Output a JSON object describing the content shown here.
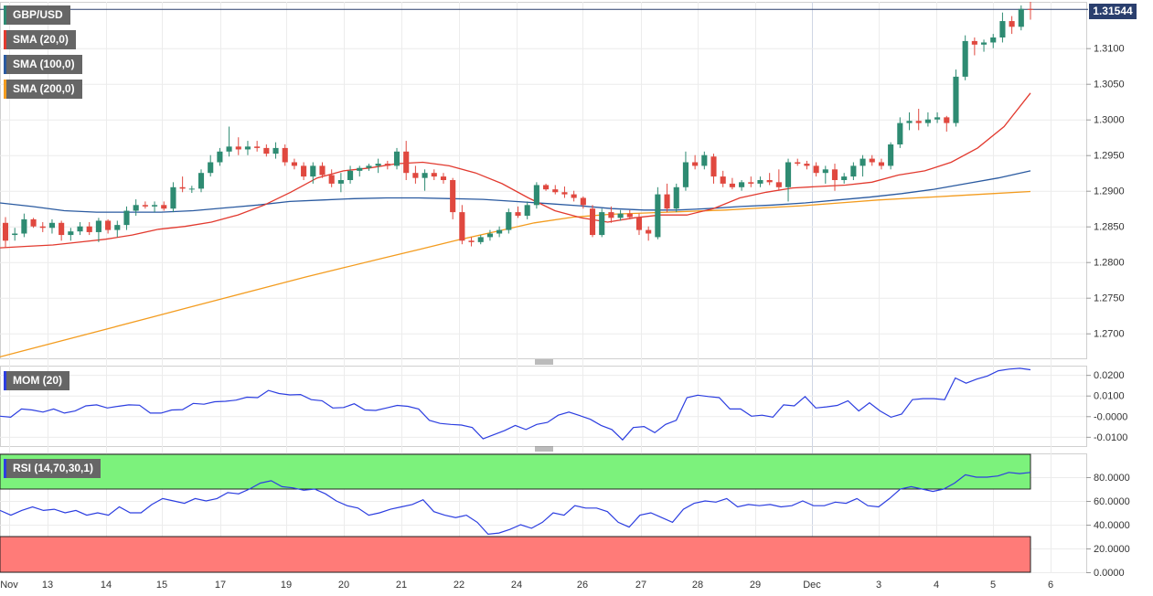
{
  "colors": {
    "bull": "#2e8b72",
    "bear": "#e0483f",
    "sma20": "#e23a2f",
    "sma100": "#2a5aa0",
    "sma200": "#f39c1f",
    "mom": "#2c3ee0",
    "rsi": "#2c3ee0",
    "overbought_zone": "#7cf27c",
    "oversold_zone": "#ff7b78",
    "price_line": "#2a3f6e",
    "legend_bg": "#666666"
  },
  "legends": {
    "price": "GBP/USD",
    "sma20": "SMA (20,0)",
    "sma100": "SMA (100,0)",
    "sma200": "SMA (200,0)",
    "mom": "MOM (20)",
    "rsi": "RSI (14,70,30,1)"
  },
  "last_price_label": "1.31544",
  "chart_data": [
    {
      "type": "candlestick",
      "title": "GBP/USD",
      "ylim": [
        1.2665,
        1.3165
      ],
      "yticks": [
        "1.3100",
        "1.3050",
        "1.3000",
        "1.2950",
        "1.2900",
        "1.2850",
        "1.2800",
        "1.2750",
        "1.2700"
      ],
      "x_ticks": [
        "Nov",
        "13",
        "14",
        "15",
        "17",
        "19",
        "20",
        "21",
        "22",
        "24",
        "26",
        "27",
        "28",
        "29",
        "Dec",
        "3",
        "4",
        "5",
        "6"
      ],
      "last_price": 1.31544,
      "candles_ohlc": [
        [
          1.2855,
          1.2863,
          1.282,
          1.283
        ],
        [
          1.2838,
          1.2848,
          1.283,
          1.284
        ],
        [
          1.284,
          1.2868,
          1.2835,
          1.286
        ],
        [
          1.286,
          1.2862,
          1.2848,
          1.285
        ],
        [
          1.285,
          1.2856,
          1.2842,
          1.2848
        ],
        [
          1.2848,
          1.286,
          1.284,
          1.2855
        ],
        [
          1.2855,
          1.2858,
          1.283,
          1.2838
        ],
        [
          1.2838,
          1.2848,
          1.283,
          1.2843
        ],
        [
          1.2843,
          1.2856,
          1.2838,
          1.285
        ],
        [
          1.285,
          1.2856,
          1.2838,
          1.2842
        ],
        [
          1.2842,
          1.2862,
          1.2828,
          1.2858
        ],
        [
          1.2858,
          1.286,
          1.284,
          1.2845
        ],
        [
          1.2845,
          1.2858,
          1.2835,
          1.2852
        ],
        [
          1.2852,
          1.2878,
          1.2845,
          1.2872
        ],
        [
          1.2872,
          1.2888,
          1.2865,
          1.288
        ],
        [
          1.288,
          1.2885,
          1.2875,
          1.2878
        ],
        [
          1.2878,
          1.2885,
          1.287,
          1.288
        ],
        [
          1.288,
          1.2885,
          1.2872,
          1.2875
        ],
        [
          1.2875,
          1.2912,
          1.287,
          1.2905
        ],
        [
          1.2905,
          1.292,
          1.2898,
          1.2903
        ],
        [
          1.2903,
          1.2907,
          1.2897,
          1.2903
        ],
        [
          1.2903,
          1.293,
          1.2898,
          1.2925
        ],
        [
          1.2925,
          1.295,
          1.292,
          1.294
        ],
        [
          1.294,
          1.296,
          1.2935,
          1.2955
        ],
        [
          1.2955,
          1.299,
          1.2948,
          1.2962
        ],
        [
          1.2962,
          1.2975,
          1.295,
          1.2958
        ],
        [
          1.2958,
          1.297,
          1.295,
          1.2962
        ],
        [
          1.2962,
          1.297,
          1.2955,
          1.296
        ],
        [
          1.296,
          1.2965,
          1.2948,
          1.2952
        ],
        [
          1.2952,
          1.2968,
          1.2945,
          1.296
        ],
        [
          1.296,
          1.2965,
          1.2935,
          1.294
        ],
        [
          1.294,
          1.2945,
          1.293,
          1.2935
        ],
        [
          1.2935,
          1.294,
          1.2915,
          1.292
        ],
        [
          1.292,
          1.294,
          1.291,
          1.2935
        ],
        [
          1.2935,
          1.294,
          1.2918,
          1.2922
        ],
        [
          1.2922,
          1.293,
          1.2905,
          1.291
        ],
        [
          1.291,
          1.2925,
          1.2898,
          1.2915
        ],
        [
          1.2915,
          1.2935,
          1.291,
          1.2928
        ],
        [
          1.2928,
          1.2935,
          1.292,
          1.2932
        ],
        [
          1.2932,
          1.2938,
          1.2928,
          1.2935
        ],
        [
          1.2935,
          1.2945,
          1.2925,
          1.2938
        ],
        [
          1.2938,
          1.2942,
          1.293,
          1.2935
        ],
        [
          1.2935,
          1.296,
          1.293,
          1.2955
        ],
        [
          1.2955,
          1.297,
          1.2915,
          1.2925
        ],
        [
          1.2925,
          1.2935,
          1.291,
          1.2918
        ],
        [
          1.2918,
          1.293,
          1.29,
          1.2925
        ],
        [
          1.2925,
          1.293,
          1.2915,
          1.292
        ],
        [
          1.292,
          1.2925,
          1.291,
          1.2915
        ],
        [
          1.2915,
          1.2918,
          1.286,
          1.287
        ],
        [
          1.287,
          1.288,
          1.2825,
          1.283
        ],
        [
          1.283,
          1.2835,
          1.2822,
          1.2828
        ],
        [
          1.2828,
          1.2838,
          1.2825,
          1.2835
        ],
        [
          1.2835,
          1.2845,
          1.283,
          1.284
        ],
        [
          1.284,
          1.285,
          1.2835,
          1.2845
        ],
        [
          1.2845,
          1.2875,
          1.284,
          1.287
        ],
        [
          1.287,
          1.2878,
          1.2862,
          1.2865
        ],
        [
          1.2865,
          1.2885,
          1.286,
          1.288
        ],
        [
          1.288,
          1.2912,
          1.2875,
          1.2908
        ],
        [
          1.2908,
          1.291,
          1.29,
          1.2902
        ],
        [
          1.2902,
          1.2908,
          1.2895,
          1.2898
        ],
        [
          1.2898,
          1.2906,
          1.289,
          1.2895
        ],
        [
          1.2895,
          1.29,
          1.2885,
          1.289
        ],
        [
          1.289,
          1.2892,
          1.2875,
          1.288
        ],
        [
          1.2875,
          1.288,
          1.2835,
          1.2838
        ],
        [
          1.2838,
          1.2875,
          1.2835,
          1.287
        ],
        [
          1.287,
          1.2878,
          1.2855,
          1.2862
        ],
        [
          1.2862,
          1.2873,
          1.2858,
          1.2868
        ],
        [
          1.2868,
          1.2873,
          1.286,
          1.2863
        ],
        [
          1.2863,
          1.2868,
          1.2838,
          1.2845
        ],
        [
          1.2845,
          1.285,
          1.283,
          1.284
        ],
        [
          1.2835,
          1.2905,
          1.2832,
          1.2895
        ],
        [
          1.2895,
          1.291,
          1.287,
          1.2875
        ],
        [
          1.2875,
          1.291,
          1.287,
          1.2905
        ],
        [
          1.2905,
          1.2955,
          1.29,
          1.294
        ],
        [
          1.294,
          1.295,
          1.293,
          1.2935
        ],
        [
          1.2935,
          1.2955,
          1.293,
          1.295
        ],
        [
          1.2948,
          1.2952,
          1.291,
          1.292
        ],
        [
          1.292,
          1.2928,
          1.2905,
          1.291
        ],
        [
          1.291,
          1.2918,
          1.2902,
          1.2905
        ],
        [
          1.2905,
          1.2915,
          1.29,
          1.2912
        ],
        [
          1.2912,
          1.292,
          1.2905,
          1.291
        ],
        [
          1.291,
          1.292,
          1.2905,
          1.2915
        ],
        [
          1.2915,
          1.2925,
          1.2908,
          1.2912
        ],
        [
          1.2912,
          1.293,
          1.29,
          1.2905
        ],
        [
          1.2905,
          1.2945,
          1.2885,
          1.294
        ],
        [
          1.294,
          1.2945,
          1.2935,
          1.2938
        ],
        [
          1.2938,
          1.2942,
          1.293,
          1.2935
        ],
        [
          1.2935,
          1.294,
          1.292,
          1.2925
        ],
        [
          1.2925,
          1.2935,
          1.291,
          1.293
        ],
        [
          1.293,
          1.2938,
          1.29,
          1.2915
        ],
        [
          1.2915,
          1.2925,
          1.291,
          1.292
        ],
        [
          1.292,
          1.294,
          1.2915,
          1.2935
        ],
        [
          1.2935,
          1.295,
          1.292,
          1.2945
        ],
        [
          1.2945,
          1.295,
          1.2935,
          1.294
        ],
        [
          1.294,
          1.2945,
          1.293,
          1.2935
        ],
        [
          1.2935,
          1.2968,
          1.293,
          1.2965
        ],
        [
          1.2965,
          1.3003,
          1.296,
          1.2995
        ],
        [
          1.2995,
          1.301,
          1.2985,
          1.2998
        ],
        [
          1.2998,
          1.3015,
          1.2985,
          1.2995
        ],
        [
          1.2995,
          1.301,
          1.299,
          1.3
        ],
        [
          1.3,
          1.301,
          1.2995,
          1.3003
        ],
        [
          1.3003,
          1.3005,
          1.2983,
          1.2995
        ],
        [
          1.2995,
          1.307,
          1.299,
          1.306
        ],
        [
          1.306,
          1.3118,
          1.3055,
          1.311
        ],
        [
          1.311,
          1.3115,
          1.309,
          1.3105
        ],
        [
          1.3105,
          1.3112,
          1.3095,
          1.3108
        ],
        [
          1.3108,
          1.312,
          1.31,
          1.3115
        ],
        [
          1.3115,
          1.315,
          1.3108,
          1.3138
        ],
        [
          1.3138,
          1.3145,
          1.312,
          1.313
        ],
        [
          1.313,
          1.316,
          1.3125,
          1.3155
        ],
        [
          1.3155,
          1.3165,
          1.314,
          1.3154
        ]
      ],
      "sma20": [
        1.282,
        1.2822,
        1.2824,
        1.2828,
        1.2832,
        1.2838,
        1.2846,
        1.285,
        1.2856,
        1.2866,
        1.288,
        1.2898,
        1.2918,
        1.2928,
        1.2932,
        1.2938,
        1.294,
        1.2935,
        1.2925,
        1.291,
        1.289,
        1.2872,
        1.2862,
        1.2856,
        1.2862,
        1.2866,
        1.2866,
        1.2875,
        1.289,
        1.2898,
        1.2904,
        1.2906,
        1.2908,
        1.2912,
        1.2922,
        1.2928,
        1.294,
        1.296,
        1.299,
        1.3037
      ],
      "sma100": [
        1.2883,
        1.2878,
        1.2872,
        1.287,
        1.287,
        1.287,
        1.2872,
        1.2876,
        1.288,
        1.2885,
        1.2887,
        1.2889,
        1.289,
        1.289,
        1.2889,
        1.2888,
        1.2885,
        1.2882,
        1.2879,
        1.2875,
        1.2873,
        1.2873,
        1.2875,
        1.2878,
        1.288,
        1.2883,
        1.2887,
        1.2891,
        1.2896,
        1.2902,
        1.291,
        1.2918,
        1.2928
      ],
      "sma200": [
        1.2667,
        1.2681,
        1.2695,
        1.2709,
        1.2723,
        1.2737,
        1.2751,
        1.2765,
        1.2779,
        1.2792,
        1.2805,
        1.2818,
        1.2831,
        1.2843,
        1.2855,
        1.2863,
        1.2867,
        1.2869,
        1.2871,
        1.2873,
        1.2876,
        1.2879,
        1.2883,
        1.2887,
        1.289,
        1.2893,
        1.2896,
        1.2899
      ]
    },
    {
      "type": "line",
      "title": "MOM (20)",
      "ylim": [
        -0.0145,
        0.0245
      ],
      "yticks": [
        "0.0200",
        "0.0100",
        "-0.0000",
        "-0.0100"
      ],
      "values": [
        0.0,
        -0.0005,
        0.0035,
        0.003,
        0.002,
        0.0035,
        0.0015,
        0.0025,
        0.005,
        0.0055,
        0.004,
        0.0048,
        0.0055,
        0.0053,
        0.0015,
        0.0015,
        0.003,
        0.0032,
        0.0062,
        0.0058,
        0.007,
        0.0072,
        0.0078,
        0.0092,
        0.009,
        0.0125,
        0.011,
        0.0103,
        0.0105,
        0.008,
        0.0075,
        0.004,
        0.0042,
        0.006,
        0.003,
        0.0028,
        0.004,
        0.0052,
        0.0048,
        0.0035,
        -0.002,
        -0.0035,
        -0.004,
        -0.0043,
        -0.0055,
        -0.011,
        -0.009,
        -0.007,
        -0.0045,
        -0.0065,
        -0.004,
        -0.003,
        0.0005,
        0.002,
        0.0003,
        -0.0015,
        -0.0045,
        -0.0065,
        -0.0115,
        -0.0055,
        -0.005,
        -0.008,
        -0.004,
        -0.002,
        0.009,
        0.0102,
        0.0095,
        0.009,
        0.0035,
        0.0035,
        0.0,
        0.0005,
        -0.0005,
        0.0055,
        0.005,
        0.0095,
        0.004,
        0.0045,
        0.0052,
        0.0075,
        0.0025,
        0.0065,
        0.0025,
        -0.0005,
        0.001,
        0.008,
        0.0085,
        0.0085,
        0.008,
        0.0185,
        0.016,
        0.018,
        0.0195,
        0.022,
        0.0228,
        0.0232,
        0.0225
      ]
    },
    {
      "type": "line",
      "title": "RSI (14,70,30,1)",
      "ylim": [
        0,
        100
      ],
      "yticks": [
        "80.0000",
        "60.0000",
        "40.0000",
        "20.0000",
        "0.0000"
      ],
      "overbought": 70,
      "oversold": 30,
      "values": [
        52,
        48,
        52,
        55,
        52,
        53,
        50,
        52,
        48,
        50,
        48,
        55,
        50,
        50,
        57,
        62,
        60,
        58,
        62,
        60,
        62,
        67,
        66,
        70,
        75,
        77,
        72,
        71,
        69,
        70,
        66,
        60,
        56,
        54,
        48,
        50,
        53,
        55,
        57,
        61,
        51,
        48,
        46,
        48,
        42,
        32,
        33,
        36,
        40,
        37,
        42,
        50,
        48,
        56,
        54,
        54,
        51,
        42,
        38,
        48,
        50,
        46,
        42,
        53,
        58,
        60,
        59,
        62,
        55,
        57,
        56,
        57,
        55,
        56,
        60,
        56,
        56,
        59,
        58,
        62,
        56,
        55,
        62,
        70,
        72,
        70,
        68,
        70,
        75,
        82,
        80,
        80,
        81,
        84,
        83,
        84
      ]
    }
  ]
}
